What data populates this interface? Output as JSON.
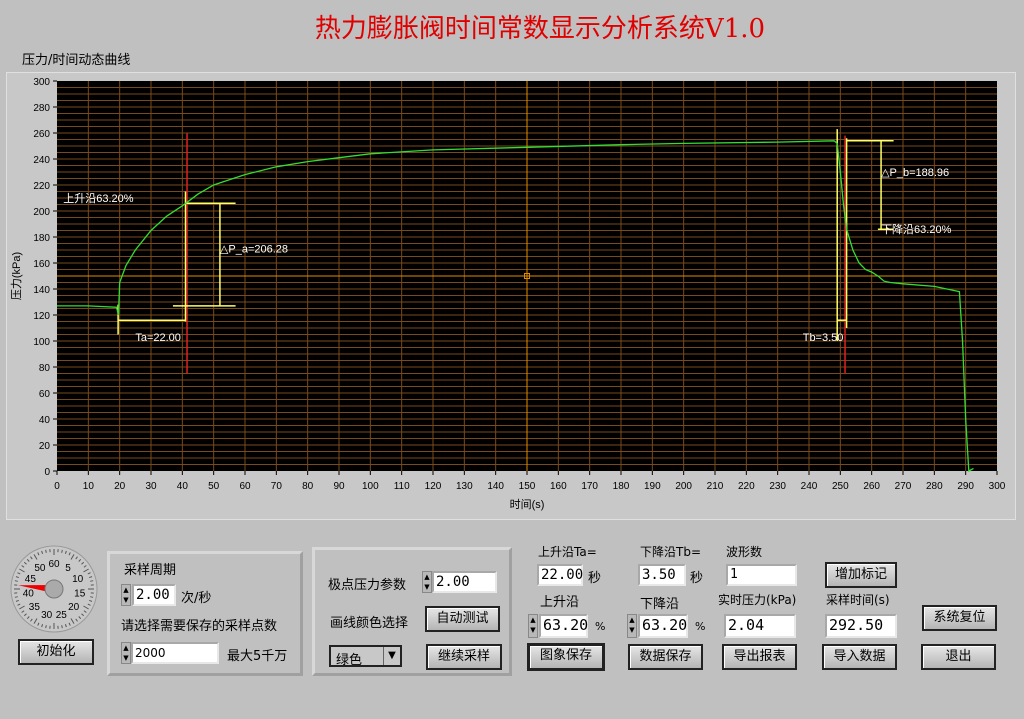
{
  "title": "热力膨胀阀时间常数显示分析系统V1.0",
  "chart": {
    "label": "压力/时间动态曲线"
  },
  "chart_data": {
    "type": "line",
    "xlabel": "时间(s)",
    "ylabel": "压力(kPa)",
    "xlim": [
      0,
      300
    ],
    "ylim": [
      0,
      300
    ],
    "x_ticks": [
      0,
      10,
      20,
      30,
      40,
      50,
      60,
      70,
      80,
      90,
      100,
      110,
      120,
      130,
      140,
      150,
      160,
      170,
      180,
      190,
      200,
      210,
      220,
      230,
      240,
      250,
      260,
      270,
      280,
      290,
      300
    ],
    "y_ticks": [
      0,
      20,
      40,
      60,
      80,
      100,
      120,
      140,
      160,
      180,
      200,
      220,
      240,
      260,
      280,
      300
    ],
    "grid": true,
    "series": [
      {
        "color": "#33dd33",
        "x": [
          0,
          10,
          19,
          19.6,
          20,
          22,
          25,
          30,
          35,
          40,
          45,
          50,
          55,
          60,
          70,
          80,
          90,
          100,
          120,
          150,
          180,
          200,
          230,
          248,
          249,
          250,
          251,
          252,
          254,
          256,
          258,
          260,
          262,
          264,
          266,
          270,
          280,
          288,
          289,
          290,
          291,
          292.5
        ],
        "y": [
          127,
          127,
          126,
          120,
          145,
          158,
          170,
          185,
          196,
          204,
          213,
          220,
          224,
          228,
          234,
          238,
          241,
          244,
          247,
          249,
          251,
          252,
          253,
          254,
          252,
          230,
          205,
          186,
          170,
          160,
          155,
          153,
          150,
          146,
          145,
          144,
          142,
          138,
          100,
          40,
          0,
          2
        ]
      }
    ],
    "annotations": {
      "rise_label": "上升沿63.20%",
      "ta_label": "Ta=22.00",
      "dpa_label": "△P_a=206.28",
      "fall_label": "下降沿63.20%",
      "tb_label": "Tb=3.50",
      "dpb_label": "△P_b=188.96",
      "cursor": [
        150,
        150
      ]
    }
  },
  "gauge": {
    "labels": [
      "60",
      "5",
      "10",
      "15",
      "20",
      "25",
      "30",
      "35",
      "40",
      "45",
      "50"
    ],
    "value_seconds": 46
  },
  "buttons": {
    "init": "初始化",
    "auto_test": "自动测试",
    "continue_sampling": "继续采样",
    "add_marker": "增加标记",
    "system_reset": "系统复位",
    "save_image": "图象保存",
    "save_data": "数据保存",
    "export_report": "导出报表",
    "import_data": "导入数据",
    "exit": "退出"
  },
  "sampling": {
    "period_label": "采样周期",
    "period_value": "2.00",
    "period_unit": "次/秒",
    "points_label": "请选择需要保存的采样点数",
    "points_value": "2000",
    "points_max": "最大5千万"
  },
  "extreme": {
    "label": "极点压力参数",
    "value": "2.00",
    "color_label": "画线颜色选择",
    "color_value": "绿色"
  },
  "results": {
    "ta_label": "上升沿Ta=",
    "ta_value": "22.00",
    "ta_unit": "秒",
    "tb_label": "下降沿Tb=",
    "tb_value": "3.50",
    "tb_unit": "秒",
    "wave_label": "波形数",
    "wave_value": "1",
    "rise_label": "上升沿",
    "rise_value": "63.20",
    "rise_unit": "%",
    "fall_label": "下降沿",
    "fall_value": "63.20",
    "fall_unit": "%",
    "pressure_label": "实时压力(kPa)",
    "pressure_value": "2.04",
    "time_label": "采样时间(s)",
    "time_value": "292.50"
  }
}
